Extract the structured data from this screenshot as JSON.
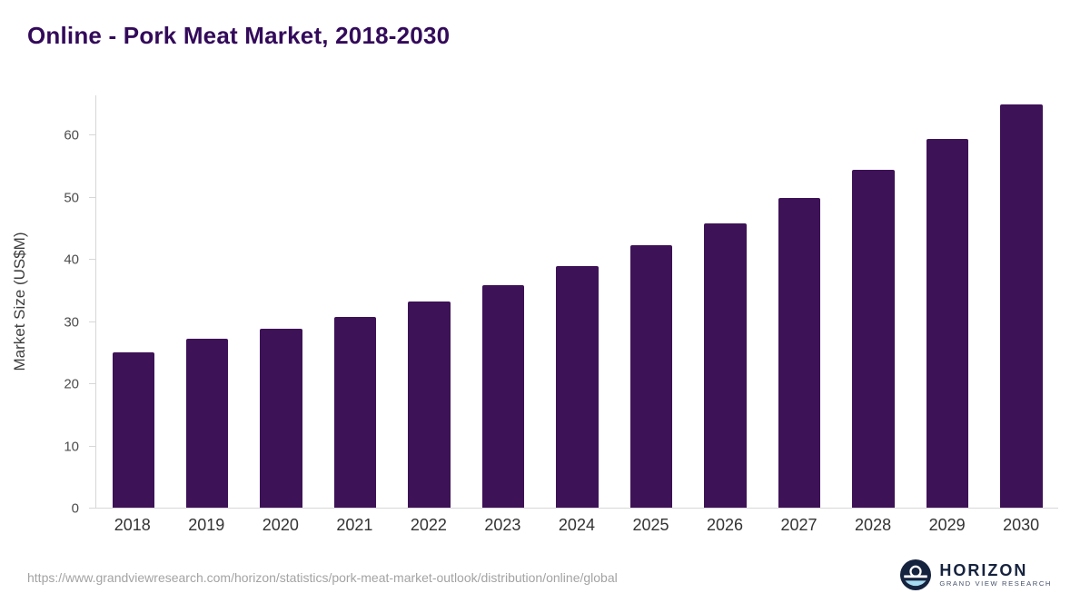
{
  "header": {
    "title": "Online - Pork Meat Market, 2018-2030"
  },
  "chart_data": {
    "type": "bar",
    "title": "Online - Pork Meat Market, 2018-2030",
    "categories": [
      "2018",
      "2019",
      "2020",
      "2021",
      "2022",
      "2023",
      "2024",
      "2025",
      "2026",
      "2027",
      "2028",
      "2029",
      "2030"
    ],
    "values": [
      25.0,
      27.3,
      28.8,
      30.7,
      33.2,
      35.9,
      39.0,
      42.3,
      45.9,
      50.0,
      54.5,
      59.4,
      65.0
    ],
    "xlabel": "",
    "ylabel": "Market Size (US$M)",
    "ylim": [
      0,
      66.5
    ],
    "yticks": [
      0,
      10,
      20,
      30,
      40,
      50,
      60
    ],
    "grid": false,
    "legend": false,
    "bar_color": "#3e1257"
  },
  "footer": {
    "source_url": "https://www.grandviewresearch.com/horizon/statistics/pork-meat-market-outlook/distribution/online/global",
    "logo_title": "HORIZON",
    "logo_subtitle": "GRAND VIEW RESEARCH"
  },
  "colors": {
    "title_text": "#330a5a",
    "bar_fill": "#3e1257",
    "axis_line": "#d7d7d7",
    "tick_text": "#4d4d4d",
    "logo_navy": "#16233f",
    "logo_light_blue": "#a7dbf2"
  }
}
